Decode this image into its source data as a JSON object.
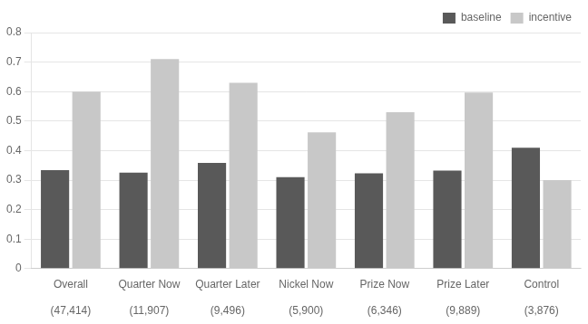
{
  "chart_data": {
    "type": "bar",
    "categories": [
      "Overall\n\n(47,414)",
      "Quarter Now\n\n(11,907)",
      "Quarter Later\n\n(9,496)",
      "Nickel Now\n\n(5,900)",
      "Prize Now\n\n(6,346)",
      "Prize Later\n\n(9,889)",
      "Control\n\n(3,876)"
    ],
    "series": [
      {
        "name": "baseline",
        "color": "#595959",
        "values": [
          0.334,
          0.325,
          0.358,
          0.31,
          0.323,
          0.332,
          0.41
        ]
      },
      {
        "name": "incentive",
        "color": "#c8c8c8",
        "values": [
          0.6,
          0.71,
          0.63,
          0.462,
          0.53,
          0.597,
          0.3
        ]
      }
    ],
    "ylim": [
      0,
      0.8
    ],
    "yticks": [
      0,
      0.1,
      0.2,
      0.3,
      0.4,
      0.5,
      0.6,
      0.7,
      0.8
    ],
    "grid": true,
    "legend": "upper right"
  }
}
